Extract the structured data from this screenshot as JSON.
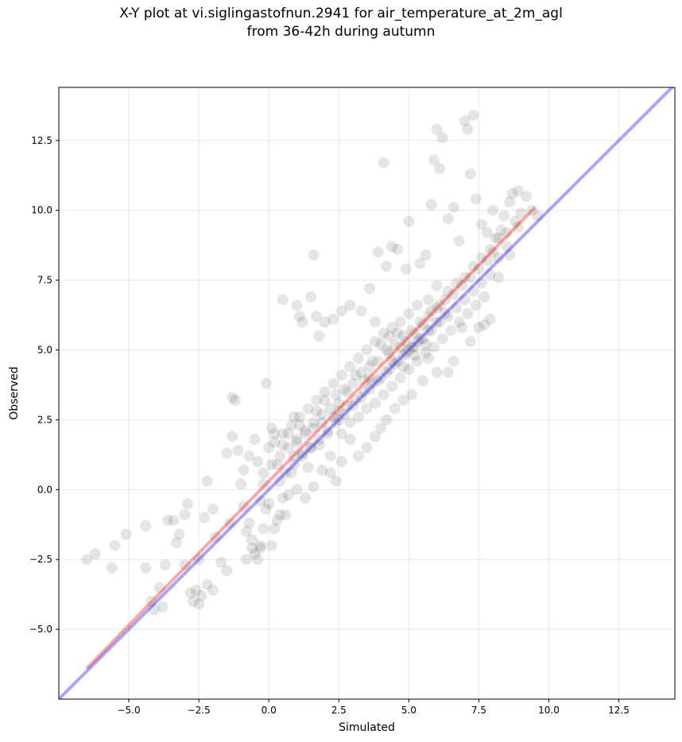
{
  "chart_data": {
    "type": "scatter",
    "title_line1": "X-Y plot at vi.siglingastofnun.2941 for air_temperature_at_2m_agl",
    "title_line2": "from 36-42h during autumn",
    "xlabel": "Simulated",
    "ylabel": "Observed",
    "xlim": [
      -7.5,
      14.5
    ],
    "ylim": [
      -7.5,
      14.4
    ],
    "x_ticks": [
      -5.0,
      -2.5,
      0.0,
      2.5,
      5.0,
      7.5,
      10.0,
      12.5
    ],
    "x_tick_labels": [
      "−5.0",
      "−2.5",
      "0.0",
      "2.5",
      "5.0",
      "7.5",
      "10.0",
      "12.5"
    ],
    "y_ticks": [
      -5.0,
      -2.5,
      0.0,
      2.5,
      5.0,
      7.5,
      10.0,
      12.5
    ],
    "y_tick_labels": [
      "−5.0",
      "−2.5",
      "0.0",
      "2.5",
      "5.0",
      "7.5",
      "10.0",
      "12.5"
    ],
    "grid": true,
    "point_color": "#000000",
    "point_alpha": 0.1,
    "points": [
      [
        -6.5,
        -2.5
      ],
      [
        -6.2,
        -2.3
      ],
      [
        -5.5,
        -2.0
      ],
      [
        -5.6,
        -2.8
      ],
      [
        -5.1,
        -1.6
      ],
      [
        -4.4,
        -1.3
      ],
      [
        -4.4,
        -2.8
      ],
      [
        -4.2,
        -4.0
      ],
      [
        -4.1,
        -4.3
      ],
      [
        -3.8,
        -4.2
      ],
      [
        -3.9,
        -3.5
      ],
      [
        -3.7,
        -2.7
      ],
      [
        -3.6,
        -1.1
      ],
      [
        -3.4,
        -1.1
      ],
      [
        -3.3,
        -1.9
      ],
      [
        -3.2,
        -1.6
      ],
      [
        -3.0,
        -0.9
      ],
      [
        -2.9,
        -0.5
      ],
      [
        -3.0,
        -2.7
      ],
      [
        -2.8,
        -3.7
      ],
      [
        -2.7,
        -4.0
      ],
      [
        -2.5,
        -4.1
      ],
      [
        -2.6,
        -3.6
      ],
      [
        -2.4,
        -3.8
      ],
      [
        -2.2,
        -3.4
      ],
      [
        -2.0,
        -3.6
      ],
      [
        -2.5,
        -2.5
      ],
      [
        -2.3,
        -1.0
      ],
      [
        -2.2,
        0.3
      ],
      [
        -2.0,
        -0.7
      ],
      [
        -1.9,
        -1.7
      ],
      [
        -1.7,
        -2.6
      ],
      [
        -1.5,
        -2.9
      ],
      [
        -1.4,
        -1.2
      ],
      [
        -1.5,
        1.3
      ],
      [
        -1.3,
        1.9
      ],
      [
        -1.3,
        3.3
      ],
      [
        -1.2,
        3.2
      ],
      [
        -1.1,
        1.4
      ],
      [
        -1.0,
        0.2
      ],
      [
        -0.9,
        -0.6
      ],
      [
        -0.8,
        -1.5
      ],
      [
        -0.7,
        -1.2
      ],
      [
        -0.6,
        -2.1
      ],
      [
        -0.5,
        -2.3
      ],
      [
        -0.4,
        -2.5
      ],
      [
        -0.3,
        -2.0
      ],
      [
        -0.2,
        -1.4
      ],
      [
        -0.1,
        -0.7
      ],
      [
        -0.2,
        0.6
      ],
      [
        -0.4,
        1.0
      ],
      [
        -0.5,
        1.8
      ],
      [
        -0.7,
        1.2
      ],
      [
        -0.9,
        0.7
      ],
      [
        0.0,
        1.5
      ],
      [
        0.1,
        2.2
      ],
      [
        0.2,
        2.0
      ],
      [
        -0.1,
        3.8
      ],
      [
        0.3,
        0.9
      ],
      [
        0.4,
        0.3
      ],
      [
        0.5,
        -0.3
      ],
      [
        0.6,
        -0.9
      ],
      [
        0.3,
        -1.1
      ],
      [
        0.0,
        -0.5
      ],
      [
        -0.3,
        -0.4
      ],
      [
        0.8,
        0.6
      ],
      [
        0.9,
        1.2
      ],
      [
        1.0,
        1.7
      ],
      [
        1.1,
        2.3
      ],
      [
        1.2,
        1.3
      ],
      [
        0.7,
        2.0
      ],
      [
        0.5,
        1.6
      ],
      [
        0.9,
        2.6
      ],
      [
        1.3,
        2.0
      ],
      [
        1.4,
        0.8
      ],
      [
        1.5,
        1.5
      ],
      [
        1.6,
        2.2
      ],
      [
        1.7,
        2.8
      ],
      [
        1.8,
        1.6
      ],
      [
        1.9,
        2.4
      ],
      [
        2.0,
        3.2
      ],
      [
        2.1,
        2.0
      ],
      [
        2.2,
        1.2
      ],
      [
        2.3,
        2.6
      ],
      [
        2.4,
        3.4
      ],
      [
        2.5,
        2.8
      ],
      [
        2.6,
        2.0
      ],
      [
        2.7,
        3.6
      ],
      [
        2.8,
        3.0
      ],
      [
        2.9,
        2.4
      ],
      [
        3.0,
        3.8
      ],
      [
        3.1,
        3.2
      ],
      [
        3.2,
        2.6
      ],
      [
        3.3,
        4.2
      ],
      [
        3.4,
        3.5
      ],
      [
        3.5,
        2.9
      ],
      [
        3.6,
        4.4
      ],
      [
        3.7,
        3.8
      ],
      [
        3.8,
        3.1
      ],
      [
        3.9,
        4.6
      ],
      [
        4.0,
        4.0
      ],
      [
        4.1,
        3.4
      ],
      [
        4.2,
        5.0
      ],
      [
        4.3,
        4.3
      ],
      [
        4.4,
        3.7
      ],
      [
        4.5,
        5.2
      ],
      [
        4.6,
        4.6
      ],
      [
        4.7,
        4.0
      ],
      [
        4.8,
        5.5
      ],
      [
        4.9,
        4.9
      ],
      [
        5.0,
        4.3
      ],
      [
        5.1,
        5.7
      ],
      [
        5.2,
        5.1
      ],
      [
        5.3,
        4.6
      ],
      [
        5.4,
        6.0
      ],
      [
        5.5,
        5.4
      ],
      [
        5.6,
        4.9
      ],
      [
        5.7,
        6.2
      ],
      [
        5.8,
        5.7
      ],
      [
        5.9,
        5.1
      ],
      [
        6.0,
        6.5
      ],
      [
        6.1,
        6.0
      ],
      [
        6.2,
        5.4
      ],
      [
        6.3,
        6.8
      ],
      [
        6.4,
        6.2
      ],
      [
        6.5,
        5.7
      ],
      [
        6.6,
        7.0
      ],
      [
        6.7,
        6.5
      ],
      [
        6.8,
        6.0
      ],
      [
        6.9,
        7.3
      ],
      [
        7.0,
        6.8
      ],
      [
        7.1,
        6.3
      ],
      [
        7.2,
        7.6
      ],
      [
        7.3,
        7.1
      ],
      [
        7.4,
        6.6
      ],
      [
        7.5,
        7.9
      ],
      [
        7.6,
        7.4
      ],
      [
        7.7,
        6.9
      ],
      [
        7.8,
        8.2
      ],
      [
        7.9,
        7.7
      ],
      [
        8.0,
        8.5
      ],
      [
        8.1,
        9.0
      ],
      [
        8.2,
        8.3
      ],
      [
        8.3,
        9.3
      ],
      [
        8.4,
        9.8
      ],
      [
        8.5,
        8.7
      ],
      [
        8.6,
        10.3
      ],
      [
        8.7,
        10.6
      ],
      [
        8.8,
        9.6
      ],
      [
        8.9,
        10.7
      ],
      [
        9.0,
        9.9
      ],
      [
        9.2,
        10.5
      ],
      [
        9.4,
        10.0
      ],
      [
        9.6,
        9.8
      ],
      [
        8.9,
        9.4
      ],
      [
        8.6,
        8.4
      ],
      [
        8.2,
        7.6
      ],
      [
        7.9,
        6.1
      ],
      [
        7.7,
        5.9
      ],
      [
        7.5,
        5.8
      ],
      [
        7.2,
        5.3
      ],
      [
        6.9,
        5.8
      ],
      [
        6.6,
        4.6
      ],
      [
        6.4,
        4.2
      ],
      [
        6.0,
        4.2
      ],
      [
        5.7,
        4.7
      ],
      [
        5.5,
        3.9
      ],
      [
        5.1,
        3.4
      ],
      [
        4.8,
        3.2
      ],
      [
        4.5,
        2.9
      ],
      [
        4.2,
        2.5
      ],
      [
        4.0,
        2.2
      ],
      [
        3.8,
        1.9
      ],
      [
        3.5,
        1.5
      ],
      [
        3.2,
        1.2
      ],
      [
        2.9,
        1.8
      ],
      [
        2.6,
        1.0
      ],
      [
        2.4,
        0.3
      ],
      [
        2.2,
        0.6
      ],
      [
        1.9,
        0.7
      ],
      [
        1.6,
        0.1
      ],
      [
        1.3,
        -0.3
      ],
      [
        1.0,
        0.0
      ],
      [
        0.7,
        -0.2
      ],
      [
        0.4,
        -0.9
      ],
      [
        0.2,
        -1.4
      ],
      [
        0.1,
        -2.0
      ],
      [
        -0.3,
        -2.1
      ],
      [
        -0.6,
        -1.8
      ],
      [
        -0.8,
        -2.5
      ],
      [
        0.5,
        6.8
      ],
      [
        1.0,
        6.6
      ],
      [
        1.1,
        6.2
      ],
      [
        1.2,
        6.0
      ],
      [
        1.5,
        6.9
      ],
      [
        1.6,
        8.4
      ],
      [
        1.7,
        6.2
      ],
      [
        1.8,
        5.5
      ],
      [
        2.0,
        6.0
      ],
      [
        2.3,
        6.1
      ],
      [
        2.6,
        6.4
      ],
      [
        2.9,
        6.6
      ],
      [
        3.3,
        6.4
      ],
      [
        3.6,
        7.2
      ],
      [
        3.8,
        6.0
      ],
      [
        3.9,
        8.5
      ],
      [
        4.1,
        11.7
      ],
      [
        4.2,
        8.0
      ],
      [
        4.4,
        8.7
      ],
      [
        4.6,
        8.6
      ],
      [
        4.9,
        7.9
      ],
      [
        5.0,
        9.6
      ],
      [
        5.4,
        8.1
      ],
      [
        5.6,
        8.4
      ],
      [
        5.8,
        10.2
      ],
      [
        5.9,
        11.8
      ],
      [
        6.0,
        12.9
      ],
      [
        6.1,
        11.5
      ],
      [
        6.2,
        12.6
      ],
      [
        6.4,
        9.7
      ],
      [
        6.6,
        10.1
      ],
      [
        6.8,
        8.9
      ],
      [
        7.0,
        13.2
      ],
      [
        7.1,
        12.9
      ],
      [
        7.2,
        11.3
      ],
      [
        7.3,
        13.4
      ],
      [
        7.4,
        10.4
      ],
      [
        7.6,
        9.5
      ],
      [
        7.8,
        9.2
      ],
      [
        8.0,
        10.0
      ],
      [
        6.0,
        7.3
      ],
      [
        5.7,
        6.8
      ],
      [
        5.3,
        6.6
      ],
      [
        5.0,
        6.3
      ],
      [
        4.7,
        6.0
      ],
      [
        4.4,
        5.8
      ],
      [
        4.1,
        5.6
      ],
      [
        3.8,
        5.3
      ],
      [
        3.5,
        5.0
      ],
      [
        3.2,
        4.7
      ],
      [
        2.9,
        4.4
      ],
      [
        2.6,
        4.1
      ],
      [
        2.3,
        3.8
      ],
      [
        2.0,
        3.5
      ],
      [
        1.7,
        3.2
      ],
      [
        1.4,
        2.9
      ],
      [
        1.1,
        2.6
      ],
      [
        0.8,
        2.3
      ],
      [
        0.5,
        2.0
      ],
      [
        0.2,
        1.7
      ],
      [
        3.0,
        3.0
      ],
      [
        3.3,
        3.3
      ],
      [
        3.6,
        3.6
      ],
      [
        3.9,
        3.9
      ],
      [
        4.2,
        4.2
      ],
      [
        4.5,
        4.5
      ],
      [
        4.8,
        4.8
      ],
      [
        5.1,
        5.1
      ],
      [
        5.4,
        5.4
      ],
      [
        5.7,
        5.7
      ],
      [
        2.7,
        2.7
      ],
      [
        2.4,
        2.4
      ],
      [
        2.1,
        2.1
      ],
      [
        1.8,
        1.8
      ],
      [
        1.5,
        1.5
      ],
      [
        1.2,
        1.2
      ],
      [
        0.9,
        0.9
      ],
      [
        0.6,
        0.6
      ],
      [
        6.0,
        6.0
      ],
      [
        6.3,
        6.3
      ],
      [
        4.6,
        5.6
      ],
      [
        4.3,
        4.9
      ],
      [
        4.9,
        5.3
      ],
      [
        5.2,
        4.8
      ],
      [
        5.5,
        5.9
      ],
      [
        3.7,
        4.6
      ],
      [
        3.4,
        3.9
      ],
      [
        3.1,
        4.1
      ],
      [
        2.8,
        3.5
      ],
      [
        2.5,
        3.1
      ],
      [
        5.8,
        6.4
      ],
      [
        6.1,
        6.6
      ],
      [
        6.4,
        7.1
      ],
      [
        6.7,
        7.4
      ],
      [
        7.0,
        7.6
      ],
      [
        7.3,
        8.0
      ],
      [
        7.6,
        8.3
      ],
      [
        7.9,
        8.6
      ],
      [
        8.2,
        9.0
      ],
      [
        8.5,
        9.2
      ],
      [
        4.0,
        5.2
      ],
      [
        4.3,
        5.5
      ],
      [
        4.7,
        5.1
      ],
      [
        5.0,
        5.0
      ],
      [
        5.3,
        5.3
      ],
      [
        4.4,
        4.6
      ],
      [
        4.8,
        4.4
      ],
      [
        5.2,
        5.6
      ],
      [
        5.6,
        5.2
      ],
      [
        3.6,
        4.0
      ],
      [
        2.2,
        2.9
      ],
      [
        2.5,
        2.5
      ],
      [
        1.9,
        2.7
      ],
      [
        1.6,
        2.4
      ],
      [
        1.3,
        2.1
      ],
      [
        1.0,
        1.8
      ],
      [
        0.7,
        1.5
      ],
      [
        0.4,
        1.2
      ],
      [
        0.1,
        0.9
      ],
      [
        -0.2,
        0.2
      ]
    ],
    "regression_line": {
      "color": "#ff0000",
      "alpha": 0.35,
      "x": [
        -6.5,
        9.5
      ],
      "y": [
        -6.4,
        10.1
      ]
    },
    "identity_line": {
      "color": "#0000ff",
      "alpha": 0.35,
      "x": [
        -7.5,
        14.5
      ],
      "y": [
        -7.5,
        14.5
      ]
    }
  }
}
